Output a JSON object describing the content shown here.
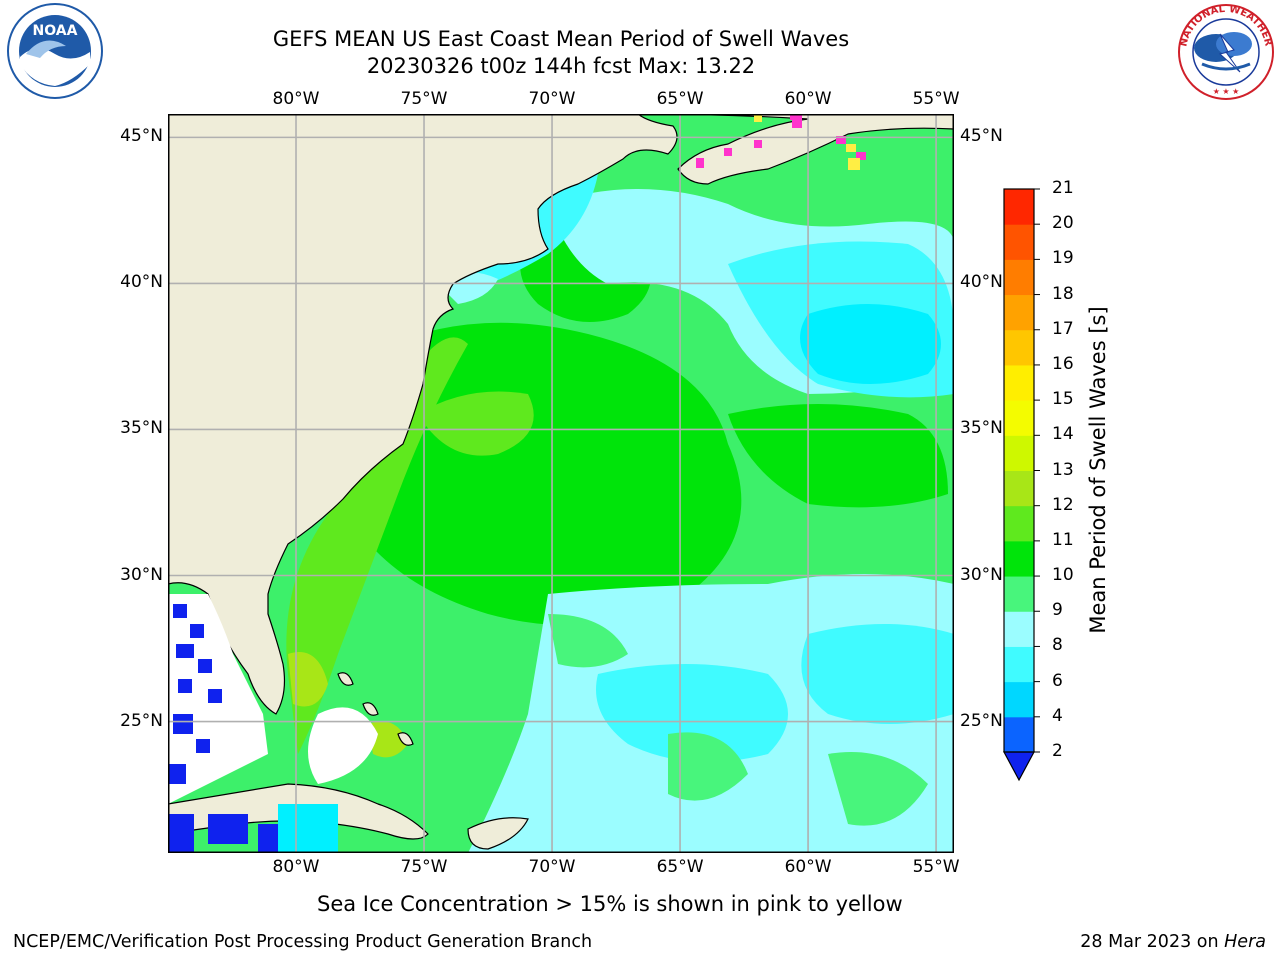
{
  "header": {
    "title_line1": "GEFS MEAN US East Coast Mean Period of Swell Waves",
    "title_line2": "20230326 t00z 144h fcst   Max: 13.22"
  },
  "logos": {
    "left": {
      "name": "NOAA",
      "text": "NOAA",
      "ring_text": "NATIONAL OCEANIC AND ATMOSPHERIC ADMINISTRATION · U.S. DEPARTMENT OF COMMERCE",
      "color": "#1f5aa8"
    },
    "right": {
      "name": "National Weather Service",
      "ring_text": "NATIONAL WEATHER SERVICE",
      "color": "#d0202a"
    }
  },
  "map": {
    "lon_labels": [
      "80°W",
      "75°W",
      "70°W",
      "65°W",
      "60°W",
      "55°W"
    ],
    "lon_values": [
      -80,
      -75,
      -70,
      -65,
      -60,
      -55
    ],
    "lat_labels": [
      "45°N",
      "40°N",
      "35°N",
      "30°N",
      "25°N"
    ],
    "lat_values": [
      45,
      40,
      35,
      30,
      25
    ],
    "lon_range": [
      -85,
      -54.3
    ],
    "lat_range": [
      20.5,
      45.8
    ],
    "land_color": "#efedd9",
    "ocean_default": "#3df06a",
    "grid": true
  },
  "colorbar": {
    "label": "Mean Period of Swell Waves [s]",
    "ticks": [
      "2",
      "4",
      "6",
      "8",
      "9",
      "10",
      "11",
      "12",
      "13",
      "14",
      "15",
      "16",
      "17",
      "18",
      "19",
      "20",
      "21"
    ],
    "colors": [
      "#0b64ff",
      "#00d7ff",
      "#40fbff",
      "#9bfdff",
      "#48f57c",
      "#00e40a",
      "#5fe91e",
      "#a8e617",
      "#cef800",
      "#f4fc00",
      "#ffee00",
      "#ffc600",
      "#ffa200",
      "#ff7d00",
      "#ff5400",
      "#ff2700",
      "#ff0000"
    ],
    "under_color": "#0f22ee",
    "extend": "min"
  },
  "caption": "Sea Ice Concentration > 15% is shown in pink to yellow",
  "footer": {
    "left": "NCEP/EMC/Verification Post Processing Product Generation Branch",
    "right_date": "28 Mar 2023 on ",
    "right_machine": "Hera"
  }
}
